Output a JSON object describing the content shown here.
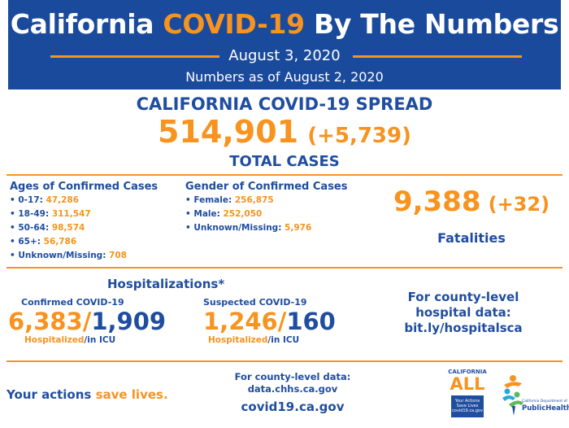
{
  "header": {
    "title_pre": "California",
    "title_highlight": "COVID-19",
    "title_post": "By The Numbers",
    "date": "August 3, 2020",
    "as_of": "Numbers as of August 2, 2020"
  },
  "spread": {
    "heading": "CALIFORNIA COVID-19 SPREAD",
    "total_cases": "514,901",
    "change": "(+5,739)",
    "label": "TOTAL CASES"
  },
  "ages": {
    "title": "Ages of Confirmed Cases",
    "items": [
      {
        "label": "• 0-17:",
        "value": "47,286"
      },
      {
        "label": "• 18-49:",
        "value": "311,547"
      },
      {
        "label": "• 50-64:",
        "value": "98,574"
      },
      {
        "label": "• 65+:",
        "value": "56,786"
      },
      {
        "label": "• Unknown/Missing:",
        "value": "708"
      }
    ]
  },
  "gender": {
    "title": "Gender of Confirmed Cases",
    "items": [
      {
        "label": "• Female:",
        "value": "256,875"
      },
      {
        "label": "• Male:",
        "value": "252,050"
      },
      {
        "label": "• Unknown/Missing:",
        "value": "5,976"
      }
    ]
  },
  "fatalities": {
    "value": "9,388",
    "change": "(+32)",
    "label": "Fatalities"
  },
  "hospitalizations": {
    "title": "Hospitalizations*",
    "confirmed": {
      "label": "Confirmed COVID-19",
      "hospitalized": "6,383",
      "sep": "/",
      "icu": "1,909",
      "cap_hosp": "Hospitalized",
      "cap_icu": "/in ICU"
    },
    "suspected": {
      "label": "Suspected COVID-19",
      "hospitalized": "1,246",
      "sep": "/",
      "icu": "160",
      "cap_hosp": "Hospitalized",
      "cap_icu": "/in ICU"
    },
    "county_line1": "For county-level",
    "county_line2": "hospital data:",
    "county_link": "bit.ly/hospitalsca"
  },
  "footer": {
    "actions_pre": "Your actions",
    "actions_hl": "save lives.",
    "county_line1": "For county-level data:",
    "county_link": "data.chhs.ca.gov",
    "site": "covid19.ca.gov"
  },
  "logos": {
    "ca_all_top": "CALIFORNIA",
    "ca_all_big": "ALL",
    "ca_all_line1": "Your Actions",
    "ca_all_line2": "Save Lives",
    "ca_all_line3": "covid19.ca.gov",
    "ph_small": "California Department of",
    "ph_big": "PublicHealth"
  },
  "colors": {
    "brand_blue": "#1a4a9c",
    "accent_orange": "#f7931e"
  }
}
